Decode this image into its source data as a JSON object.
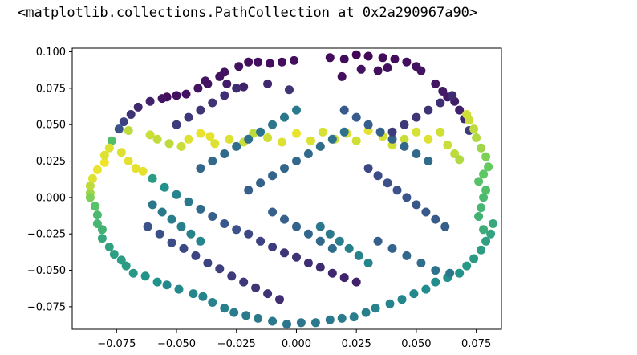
{
  "output_text": "<matplotlib.collections.PathCollection at 0x2a290967a90>",
  "chart_data": {
    "type": "scatter",
    "title": "",
    "xlabel": "",
    "ylabel": "",
    "xlim": [
      -0.0935,
      0.0855
    ],
    "ylim": [
      -0.0905,
      0.1025
    ],
    "x_ticks": [
      -0.075,
      -0.05,
      -0.025,
      0.0,
      0.025,
      0.05,
      0.075
    ],
    "x_tick_labels": [
      "−0.075",
      "−0.050",
      "−0.025",
      "0.000",
      "0.025",
      "0.050",
      "0.075"
    ],
    "y_ticks": [
      -0.075,
      -0.05,
      -0.025,
      0.0,
      0.025,
      0.05,
      0.075,
      0.1
    ],
    "y_tick_labels": [
      "−0.075",
      "−0.050",
      "−0.025",
      "0.000",
      "0.025",
      "0.050",
      "0.075",
      "0.100"
    ],
    "grid": false,
    "colormap": [
      "#440154",
      "#3b528b",
      "#21918c",
      "#5ec962",
      "#fde725"
    ],
    "marker_color_legend": "c values 0–1 mapped through viridis",
    "points": [
      [
        -0.054,
        0.069,
        0.04
      ],
      [
        -0.046,
        0.071,
        0.05
      ],
      [
        -0.041,
        0.075,
        0.06
      ],
      [
        -0.037,
        0.078,
        0.06
      ],
      [
        -0.032,
        0.083,
        0.05
      ],
      [
        -0.03,
        0.086,
        0.05
      ],
      [
        -0.024,
        0.09,
        0.05
      ],
      [
        -0.02,
        0.093,
        0.04
      ],
      [
        -0.016,
        0.093,
        0.04
      ],
      [
        -0.011,
        0.092,
        0.04
      ],
      [
        -0.006,
        0.093,
        0.04
      ],
      [
        -0.001,
        0.094,
        0.04
      ],
      [
        0.014,
        0.096,
        0.03
      ],
      [
        0.02,
        0.095,
        0.03
      ],
      [
        0.025,
        0.098,
        0.02
      ],
      [
        0.03,
        0.097,
        0.02
      ],
      [
        0.036,
        0.096,
        0.03
      ],
      [
        0.041,
        0.095,
        0.03
      ],
      [
        0.046,
        0.093,
        0.04
      ],
      [
        0.05,
        0.09,
        0.05
      ],
      [
        0.052,
        0.087,
        0.06
      ],
      [
        0.058,
        0.078,
        0.06
      ],
      [
        0.061,
        0.073,
        0.08
      ],
      [
        0.063,
        0.069,
        0.08
      ],
      [
        0.066,
        0.066,
        0.09
      ],
      [
        0.068,
        0.06,
        0.1
      ],
      [
        0.07,
        0.054,
        0.12
      ],
      [
        0.072,
        0.046,
        0.18
      ],
      [
        0.019,
        0.083,
        0.04
      ],
      [
        0.027,
        0.088,
        0.05
      ],
      [
        0.034,
        0.087,
        0.04
      ],
      [
        0.038,
        0.089,
        0.05
      ],
      [
        -0.05,
        0.07,
        0.05
      ],
      [
        -0.056,
        0.068,
        0.06
      ],
      [
        -0.061,
        0.066,
        0.1
      ],
      [
        -0.066,
        0.062,
        0.12
      ],
      [
        -0.069,
        0.057,
        0.15
      ],
      [
        -0.072,
        0.052,
        0.2
      ],
      [
        -0.074,
        0.047,
        0.25
      ],
      [
        -0.077,
        0.039,
        0.7
      ],
      [
        -0.038,
        0.08,
        0.06
      ],
      [
        -0.029,
        0.078,
        0.08
      ],
      [
        -0.022,
        0.076,
        0.1
      ],
      [
        -0.012,
        0.078,
        0.12
      ],
      [
        -0.003,
        0.074,
        0.16
      ],
      [
        -0.086,
        0.003,
        0.85
      ],
      [
        -0.086,
        0.008,
        0.9
      ],
      [
        -0.085,
        0.013,
        0.95
      ],
      [
        -0.083,
        0.019,
        0.97
      ],
      [
        -0.08,
        0.024,
        0.98
      ],
      [
        -0.086,
        0.0,
        0.8
      ],
      [
        -0.084,
        -0.006,
        0.72
      ],
      [
        -0.083,
        -0.012,
        0.68
      ],
      [
        -0.083,
        -0.018,
        0.66
      ],
      [
        -0.081,
        -0.022,
        0.64
      ],
      [
        -0.081,
        -0.028,
        0.6
      ],
      [
        -0.078,
        -0.034,
        0.57
      ],
      [
        -0.076,
        -0.039,
        0.56
      ],
      [
        -0.073,
        -0.043,
        0.55
      ],
      [
        -0.071,
        -0.047,
        0.54
      ],
      [
        -0.068,
        -0.052,
        0.53
      ],
      [
        -0.063,
        -0.054,
        0.51
      ],
      [
        -0.058,
        -0.058,
        0.5
      ],
      [
        -0.054,
        -0.06,
        0.47
      ],
      [
        -0.049,
        -0.063,
        0.47
      ],
      [
        -0.043,
        -0.066,
        0.46
      ],
      [
        -0.039,
        -0.068,
        0.45
      ],
      [
        -0.035,
        -0.072,
        0.44
      ],
      [
        -0.03,
        -0.076,
        0.43
      ],
      [
        -0.026,
        -0.079,
        0.42
      ],
      [
        -0.021,
        -0.081,
        0.41
      ],
      [
        -0.016,
        -0.083,
        0.41
      ],
      [
        -0.01,
        -0.085,
        0.4
      ],
      [
        -0.004,
        -0.087,
        0.39
      ],
      [
        0.002,
        -0.086,
        0.39
      ],
      [
        0.008,
        -0.086,
        0.4
      ],
      [
        0.014,
        -0.084,
        0.4
      ],
      [
        0.019,
        -0.083,
        0.41
      ],
      [
        0.024,
        -0.082,
        0.42
      ],
      [
        0.029,
        -0.079,
        0.43
      ],
      [
        0.033,
        -0.076,
        0.44
      ],
      [
        0.039,
        -0.073,
        0.45
      ],
      [
        0.044,
        -0.07,
        0.46
      ],
      [
        0.049,
        -0.066,
        0.47
      ],
      [
        0.054,
        -0.063,
        0.48
      ],
      [
        0.058,
        -0.058,
        0.49
      ],
      [
        0.063,
        -0.055,
        0.5
      ],
      [
        0.068,
        -0.052,
        0.51
      ],
      [
        0.071,
        -0.047,
        0.53
      ],
      [
        0.074,
        -0.042,
        0.54
      ],
      [
        0.077,
        -0.036,
        0.55
      ],
      [
        0.079,
        -0.03,
        0.56
      ],
      [
        0.081,
        -0.025,
        0.58
      ],
      [
        0.082,
        -0.018,
        0.6
      ],
      [
        0.078,
        -0.022,
        0.62
      ],
      [
        0.076,
        -0.013,
        0.64
      ],
      [
        0.077,
        -0.007,
        0.66
      ],
      [
        0.078,
        0.0,
        0.68
      ],
      [
        0.079,
        0.005,
        0.7
      ],
      [
        0.076,
        0.011,
        0.72
      ],
      [
        0.078,
        0.016,
        0.74
      ],
      [
        0.08,
        0.021,
        0.76
      ],
      [
        0.079,
        0.028,
        0.8
      ],
      [
        0.077,
        0.034,
        0.85
      ],
      [
        0.075,
        0.041,
        0.88
      ],
      [
        0.074,
        0.047,
        0.9
      ],
      [
        0.072,
        0.053,
        0.92
      ],
      [
        0.071,
        0.057,
        0.93
      ],
      [
        -0.08,
        0.029,
        0.95
      ],
      [
        -0.078,
        0.034,
        0.95
      ],
      [
        -0.073,
        0.031,
        0.95
      ],
      [
        -0.07,
        0.025,
        0.96
      ],
      [
        -0.067,
        0.02,
        0.96
      ],
      [
        -0.064,
        0.018,
        0.96
      ],
      [
        -0.07,
        0.046,
        0.9
      ],
      [
        -0.061,
        0.043,
        0.92
      ],
      [
        -0.058,
        0.04,
        0.91
      ],
      [
        -0.053,
        0.037,
        0.9
      ],
      [
        -0.048,
        0.035,
        0.92
      ],
      [
        -0.045,
        0.04,
        0.95
      ],
      [
        -0.04,
        0.044,
        0.97
      ],
      [
        -0.036,
        0.042,
        0.96
      ],
      [
        -0.034,
        0.037,
        0.95
      ],
      [
        -0.028,
        0.04,
        0.95
      ],
      [
        -0.022,
        0.038,
        0.92
      ],
      [
        -0.018,
        0.044,
        0.9
      ],
      [
        -0.012,
        0.041,
        0.93
      ],
      [
        -0.006,
        0.038,
        0.95
      ],
      [
        0.0,
        0.044,
        0.97
      ],
      [
        0.006,
        0.039,
        0.95
      ],
      [
        0.011,
        0.045,
        0.94
      ],
      [
        0.016,
        0.04,
        0.93
      ],
      [
        0.021,
        0.044,
        0.95
      ],
      [
        0.025,
        0.039,
        0.93
      ],
      [
        0.03,
        0.046,
        0.96
      ],
      [
        0.036,
        0.042,
        0.94
      ],
      [
        0.04,
        0.036,
        0.93
      ],
      [
        0.045,
        0.04,
        0.92
      ],
      [
        0.05,
        0.045,
        0.94
      ],
      [
        0.055,
        0.04,
        0.95
      ],
      [
        0.06,
        0.045,
        0.93
      ],
      [
        0.063,
        0.036,
        0.92
      ],
      [
        0.066,
        0.03,
        0.9
      ],
      [
        0.068,
        0.026,
        0.88
      ],
      [
        -0.06,
        0.013,
        0.55
      ],
      [
        -0.055,
        0.007,
        0.5
      ],
      [
        -0.05,
        0.002,
        0.45
      ],
      [
        -0.045,
        -0.003,
        0.4
      ],
      [
        -0.04,
        -0.008,
        0.35
      ],
      [
        -0.035,
        -0.013,
        0.3
      ],
      [
        -0.03,
        -0.018,
        0.27
      ],
      [
        -0.025,
        -0.022,
        0.25
      ],
      [
        -0.02,
        -0.025,
        0.22
      ],
      [
        -0.015,
        -0.03,
        0.2
      ],
      [
        -0.01,
        -0.034,
        0.18
      ],
      [
        -0.005,
        -0.038,
        0.16
      ],
      [
        0.0,
        -0.041,
        0.15
      ],
      [
        0.005,
        -0.045,
        0.14
      ],
      [
        0.01,
        -0.048,
        0.13
      ],
      [
        0.015,
        -0.052,
        0.12
      ],
      [
        0.02,
        -0.055,
        0.11
      ],
      [
        0.025,
        -0.058,
        0.1
      ],
      [
        -0.062,
        -0.02,
        0.25
      ],
      [
        -0.057,
        -0.025,
        0.24
      ],
      [
        -0.052,
        -0.031,
        0.23
      ],
      [
        -0.047,
        -0.035,
        0.22
      ],
      [
        -0.042,
        -0.04,
        0.21
      ],
      [
        -0.037,
        -0.045,
        0.2
      ],
      [
        -0.032,
        -0.049,
        0.19
      ],
      [
        -0.027,
        -0.054,
        0.18
      ],
      [
        -0.022,
        -0.058,
        0.17
      ],
      [
        -0.017,
        -0.062,
        0.16
      ],
      [
        -0.012,
        -0.066,
        0.15
      ],
      [
        -0.007,
        -0.07,
        0.14
      ],
      [
        0.03,
        0.02,
        0.22
      ],
      [
        0.034,
        0.015,
        0.23
      ],
      [
        0.038,
        0.01,
        0.24
      ],
      [
        0.042,
        0.005,
        0.25
      ],
      [
        0.046,
        0.0,
        0.26
      ],
      [
        0.05,
        -0.005,
        0.27
      ],
      [
        0.054,
        -0.01,
        0.28
      ],
      [
        0.058,
        -0.015,
        0.29
      ],
      [
        0.062,
        -0.02,
        0.3
      ],
      [
        0.034,
        -0.03,
        0.3
      ],
      [
        0.04,
        -0.035,
        0.32
      ],
      [
        0.046,
        -0.04,
        0.34
      ],
      [
        0.052,
        -0.045,
        0.36
      ],
      [
        0.058,
        -0.05,
        0.38
      ],
      [
        0.064,
        -0.052,
        0.4
      ],
      [
        -0.02,
        0.005,
        0.3
      ],
      [
        -0.015,
        0.01,
        0.31
      ],
      [
        -0.01,
        0.015,
        0.32
      ],
      [
        -0.005,
        0.02,
        0.33
      ],
      [
        0.0,
        0.025,
        0.34
      ],
      [
        0.005,
        0.03,
        0.35
      ],
      [
        0.01,
        0.035,
        0.36
      ],
      [
        0.015,
        0.04,
        0.37
      ],
      [
        0.02,
        0.045,
        0.38
      ],
      [
        -0.04,
        0.02,
        0.33
      ],
      [
        -0.035,
        0.025,
        0.34
      ],
      [
        -0.03,
        0.03,
        0.35
      ],
      [
        -0.025,
        0.035,
        0.36
      ],
      [
        -0.02,
        0.04,
        0.37
      ],
      [
        -0.015,
        0.045,
        0.38
      ],
      [
        -0.01,
        0.05,
        0.39
      ],
      [
        -0.005,
        0.055,
        0.4
      ],
      [
        0.0,
        0.06,
        0.41
      ],
      [
        0.02,
        0.06,
        0.28
      ],
      [
        0.025,
        0.055,
        0.29
      ],
      [
        0.03,
        0.05,
        0.3
      ],
      [
        0.035,
        0.045,
        0.31
      ],
      [
        0.04,
        0.04,
        0.32
      ],
      [
        0.045,
        0.035,
        0.33
      ],
      [
        0.05,
        0.03,
        0.34
      ],
      [
        0.055,
        0.025,
        0.35
      ],
      [
        -0.06,
        -0.005,
        0.4
      ],
      [
        -0.056,
        -0.01,
        0.41
      ],
      [
        -0.052,
        -0.015,
        0.42
      ],
      [
        -0.048,
        -0.02,
        0.43
      ],
      [
        -0.044,
        -0.025,
        0.44
      ],
      [
        -0.04,
        -0.03,
        0.45
      ],
      [
        0.01,
        -0.02,
        0.4
      ],
      [
        0.014,
        -0.025,
        0.41
      ],
      [
        0.018,
        -0.03,
        0.42
      ],
      [
        0.022,
        -0.035,
        0.43
      ],
      [
        0.026,
        -0.04,
        0.44
      ],
      [
        0.03,
        -0.045,
        0.45
      ],
      [
        -0.01,
        -0.01,
        0.3
      ],
      [
        -0.005,
        -0.015,
        0.31
      ],
      [
        0.0,
        -0.02,
        0.32
      ],
      [
        0.005,
        -0.025,
        0.33
      ],
      [
        0.01,
        -0.03,
        0.34
      ],
      [
        0.015,
        -0.035,
        0.35
      ],
      [
        0.055,
        0.06,
        0.15
      ],
      [
        0.05,
        0.055,
        0.16
      ],
      [
        0.045,
        0.05,
        0.17
      ],
      [
        0.04,
        0.045,
        0.18
      ],
      [
        0.06,
        0.065,
        0.14
      ],
      [
        0.065,
        0.07,
        0.13
      ],
      [
        -0.05,
        0.05,
        0.18
      ],
      [
        -0.045,
        0.055,
        0.17
      ],
      [
        -0.04,
        0.06,
        0.16
      ],
      [
        -0.035,
        0.065,
        0.15
      ],
      [
        -0.03,
        0.07,
        0.14
      ],
      [
        -0.025,
        0.075,
        0.13
      ]
    ]
  }
}
